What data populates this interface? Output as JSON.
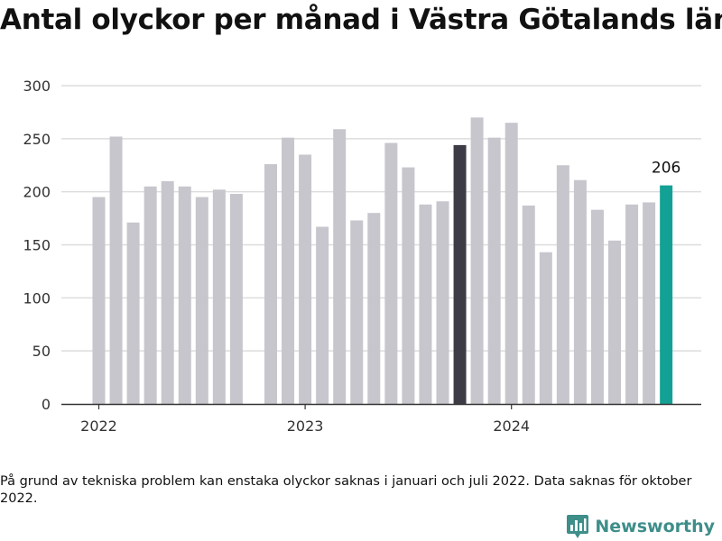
{
  "title": "Antal olyckor per månad i Västra Götalands län",
  "footnote": "På grund av tekniska problem kan enstaka olyckor saknas i januari och juli 2022. Data saknas för oktober 2022.",
  "brand": {
    "name": "Newsworthy",
    "icon": "bar-chart-logo-icon"
  },
  "colors": {
    "default": "#c7c6cd",
    "highlight": "#3d3c46",
    "latest": "#14a195",
    "grid": "#dddddd",
    "axis": "#333333"
  },
  "chart_data": {
    "type": "bar",
    "title": "Antal olyckor per månad i Västra Götalands län",
    "xlabel": "",
    "ylabel": "",
    "ylim": [
      0,
      300
    ],
    "yticks": [
      0,
      50,
      100,
      150,
      200,
      250,
      300
    ],
    "xtick_labels": [
      {
        "label": "2022",
        "x": "2022-01"
      },
      {
        "label": "2023",
        "x": "2023-01"
      },
      {
        "label": "2024",
        "x": "2024-01"
      }
    ],
    "grid": true,
    "highlighted": [
      "2023-10"
    ],
    "value_label": {
      "x": "2024-10",
      "text": "206"
    },
    "points": [
      {
        "x": "2022-01",
        "y": 195
      },
      {
        "x": "2022-02",
        "y": 252
      },
      {
        "x": "2022-03",
        "y": 171
      },
      {
        "x": "2022-04",
        "y": 205
      },
      {
        "x": "2022-05",
        "y": 210
      },
      {
        "x": "2022-06",
        "y": 205
      },
      {
        "x": "2022-07",
        "y": 195
      },
      {
        "x": "2022-08",
        "y": 202
      },
      {
        "x": "2022-09",
        "y": 198
      },
      {
        "x": "2022-11",
        "y": 226
      },
      {
        "x": "2022-12",
        "y": 251
      },
      {
        "x": "2023-01",
        "y": 235
      },
      {
        "x": "2023-02",
        "y": 167
      },
      {
        "x": "2023-03",
        "y": 259
      },
      {
        "x": "2023-04",
        "y": 173
      },
      {
        "x": "2023-05",
        "y": 180
      },
      {
        "x": "2023-06",
        "y": 246
      },
      {
        "x": "2023-07",
        "y": 223
      },
      {
        "x": "2023-08",
        "y": 188
      },
      {
        "x": "2023-09",
        "y": 191
      },
      {
        "x": "2023-10",
        "y": 244
      },
      {
        "x": "2023-11",
        "y": 270
      },
      {
        "x": "2023-12",
        "y": 251
      },
      {
        "x": "2024-01",
        "y": 265
      },
      {
        "x": "2024-02",
        "y": 187
      },
      {
        "x": "2024-03",
        "y": 143
      },
      {
        "x": "2024-04",
        "y": 225
      },
      {
        "x": "2024-05",
        "y": 211
      },
      {
        "x": "2024-06",
        "y": 183
      },
      {
        "x": "2024-07",
        "y": 154
      },
      {
        "x": "2024-08",
        "y": 188
      },
      {
        "x": "2024-09",
        "y": 190
      },
      {
        "x": "2024-10",
        "y": 206
      }
    ]
  }
}
